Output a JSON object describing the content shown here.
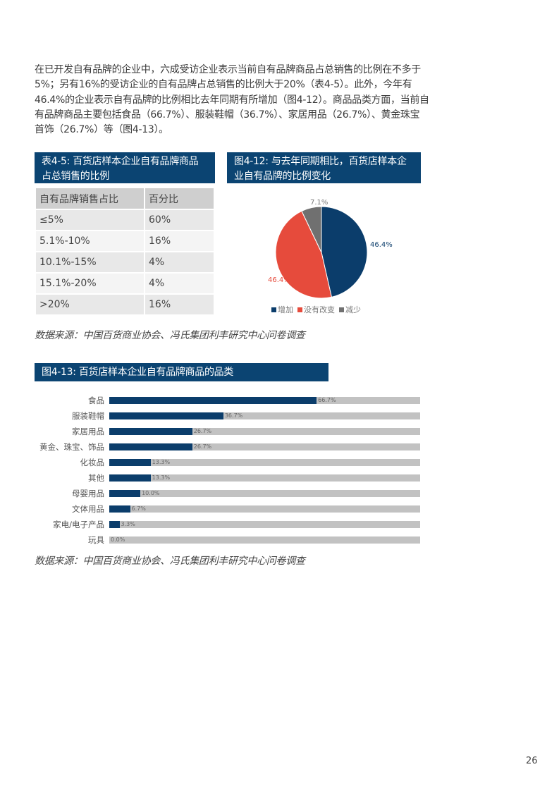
{
  "paragraph": "在已开发自有品牌的企业中，六成受访企业表示当前自有品牌商品占总销售的比例在不多于5%；另有16%的受访企业的自有品牌占总销售的比例大于20%（表4-5）。此外，今年有46.4%的企业表示自有品牌的比例相比去年同期有所增加（图4-12）。商品品类方面，当前自有品牌商品主要包括食品（66.7%）、服装鞋帽（36.7%）、家居用品（26.7%）、黄金珠宝首饰（26.7%）等（图4-13）。",
  "table": {
    "caption": "表4-5: 百货店样本企业自有品牌商品占总销售的比例",
    "headers": [
      "自有品牌销售占比",
      "百分比"
    ],
    "rows": [
      [
        "≤5%",
        "60%"
      ],
      [
        "5.1%-10%",
        "16%"
      ],
      [
        "10.1%-15%",
        "4%"
      ],
      [
        "15.1%-20%",
        "4%"
      ],
      [
        ">20%",
        "16%"
      ]
    ]
  },
  "source1": "数据来源：中国百货商业协会、冯氏集团利丰研究中心问卷调查",
  "source2": "数据来源：中国百货商业协会、冯氏集团利丰研究中心问卷调查",
  "page_number": "26",
  "chart_data": [
    {
      "type": "pie",
      "title": "图4-12: 与去年同期相比，百货店样本企业自有品牌的比例变化",
      "categories": [
        "增加",
        "没有改变",
        "减少"
      ],
      "values": [
        46.4,
        46.4,
        7.1
      ],
      "labels": [
        "46.4%",
        "46.4%",
        "7.1%"
      ],
      "colors": [
        "#0b3d6b",
        "#e64b3c",
        "#707070"
      ],
      "legend": "bottom"
    },
    {
      "type": "bar",
      "orientation": "horizontal",
      "title": "图4-13: 百货店样本企业自有品牌商品的品类",
      "categories": [
        "食品",
        "服装鞋帽",
        "家居用品",
        "黄金、珠宝、饰品",
        "化妆品",
        "其他",
        "母婴用品",
        "文体用品",
        "家电/电子产品",
        "玩具"
      ],
      "values": [
        66.7,
        36.7,
        26.7,
        26.7,
        13.3,
        13.3,
        10.0,
        6.7,
        3.3,
        0.0
      ],
      "labels": [
        "66.7%",
        "36.7%",
        "26.7%",
        "26.7%",
        "13.3%",
        "13.3%",
        "10.0%",
        "6.7%",
        "3.3%",
        "0.0%"
      ],
      "xlim": [
        0,
        100
      ],
      "colors": {
        "bar": "#0b3d6b",
        "track": "#c2c2c2"
      }
    }
  ]
}
